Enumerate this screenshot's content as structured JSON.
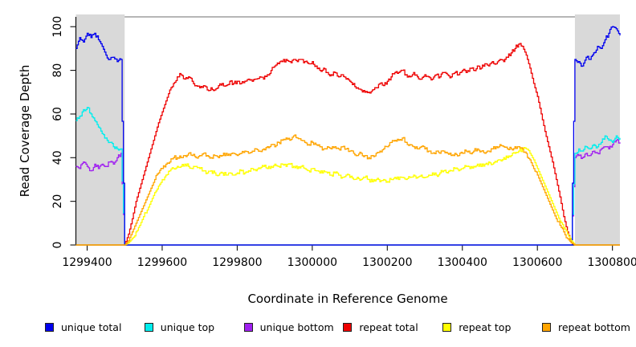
{
  "chart_data": {
    "type": "line",
    "title": "",
    "xlabel": "Coordinate in Reference Genome",
    "ylabel": "Read Coverage Depth",
    "xlim": [
      1299370,
      1300820
    ],
    "ylim": [
      0,
      104.5
    ],
    "x_ticks": [
      1299400,
      1299600,
      1299800,
      1300000,
      1300200,
      1300400,
      1300600,
      1300800
    ],
    "y_ticks": [
      0,
      20,
      40,
      60,
      80,
      100
    ],
    "grid": false,
    "legend_position": "bottom-horizontal",
    "shaded_regions": [
      {
        "x0": 1299370,
        "x1": 1299500,
        "color": "#d9d9d9"
      },
      {
        "x0": 1300700,
        "x1": 1300820,
        "color": "#d9d9d9"
      }
    ],
    "x_start": 1299370,
    "x_step": 10,
    "series": [
      {
        "name": "unique total",
        "color": "#0000ee",
        "values": [
          90,
          95,
          93,
          97,
          95,
          97,
          94,
          91,
          87,
          85,
          86,
          84,
          85,
          0,
          0,
          0,
          0,
          0,
          0,
          0,
          0,
          0,
          0,
          0,
          0,
          0,
          0,
          0,
          0,
          0,
          0,
          0,
          0,
          0,
          0,
          0,
          0,
          0,
          0,
          0,
          0,
          0,
          0,
          0,
          0,
          0,
          0,
          0,
          0,
          0,
          0,
          0,
          0,
          0,
          0,
          0,
          0,
          0,
          0,
          0,
          0,
          0,
          0,
          0,
          0,
          0,
          0,
          0,
          0,
          0,
          0,
          0,
          0,
          0,
          0,
          0,
          0,
          0,
          0,
          0,
          0,
          0,
          0,
          0,
          0,
          0,
          0,
          0,
          0,
          0,
          0,
          0,
          0,
          0,
          0,
          0,
          0,
          0,
          0,
          0,
          0,
          0,
          0,
          0,
          0,
          0,
          0,
          0,
          0,
          0,
          0,
          0,
          0,
          0,
          0,
          0,
          0,
          0,
          0,
          0,
          0,
          0,
          0,
          0,
          0,
          0,
          0,
          0,
          0,
          0,
          0,
          0,
          0,
          85,
          84,
          82,
          86,
          85,
          88,
          91,
          90,
          94,
          97,
          100,
          99,
          96
        ]
      },
      {
        "name": "unique top",
        "color": "#00eeee",
        "values": [
          57,
          59,
          62,
          63,
          60,
          57,
          54,
          51,
          49,
          47,
          45,
          44,
          44,
          0,
          0,
          0,
          0,
          0,
          0,
          0,
          0,
          0,
          0,
          0,
          0,
          0,
          0,
          0,
          0,
          0,
          0,
          0,
          0,
          0,
          0,
          0,
          0,
          0,
          0,
          0,
          0,
          0,
          0,
          0,
          0,
          0,
          0,
          0,
          0,
          0,
          0,
          0,
          0,
          0,
          0,
          0,
          0,
          0,
          0,
          0,
          0,
          0,
          0,
          0,
          0,
          0,
          0,
          0,
          0,
          0,
          0,
          0,
          0,
          0,
          0,
          0,
          0,
          0,
          0,
          0,
          0,
          0,
          0,
          0,
          0,
          0,
          0,
          0,
          0,
          0,
          0,
          0,
          0,
          0,
          0,
          0,
          0,
          0,
          0,
          0,
          0,
          0,
          0,
          0,
          0,
          0,
          0,
          0,
          0,
          0,
          0,
          0,
          0,
          0,
          0,
          0,
          0,
          0,
          0,
          0,
          0,
          0,
          0,
          0,
          0,
          0,
          0,
          0,
          0,
          0,
          0,
          0,
          0,
          42,
          44,
          43,
          45,
          44,
          46,
          45,
          47,
          50,
          48,
          47,
          50,
          49
        ]
      },
      {
        "name": "unique bottom",
        "color": "#a020f0",
        "values": [
          36,
          35,
          38,
          36,
          34,
          37,
          35,
          37,
          36,
          38,
          37,
          40,
          42,
          0,
          0,
          0,
          0,
          0,
          0,
          0,
          0,
          0,
          0,
          0,
          0,
          0,
          0,
          0,
          0,
          0,
          0,
          0,
          0,
          0,
          0,
          0,
          0,
          0,
          0,
          0,
          0,
          0,
          0,
          0,
          0,
          0,
          0,
          0,
          0,
          0,
          0,
          0,
          0,
          0,
          0,
          0,
          0,
          0,
          0,
          0,
          0,
          0,
          0,
          0,
          0,
          0,
          0,
          0,
          0,
          0,
          0,
          0,
          0,
          0,
          0,
          0,
          0,
          0,
          0,
          0,
          0,
          0,
          0,
          0,
          0,
          0,
          0,
          0,
          0,
          0,
          0,
          0,
          0,
          0,
          0,
          0,
          0,
          0,
          0,
          0,
          0,
          0,
          0,
          0,
          0,
          0,
          0,
          0,
          0,
          0,
          0,
          0,
          0,
          0,
          0,
          0,
          0,
          0,
          0,
          0,
          0,
          0,
          0,
          0,
          0,
          0,
          0,
          0,
          0,
          0,
          0,
          0,
          0,
          40,
          41,
          40,
          42,
          41,
          43,
          42,
          44,
          45,
          44,
          46,
          48,
          47
        ]
      },
      {
        "name": "repeat total",
        "color": "#ee0000",
        "values": [
          0,
          0,
          0,
          0,
          0,
          0,
          0,
          0,
          0,
          0,
          0,
          0,
          0,
          0,
          5,
          12,
          20,
          26,
          32,
          38,
          44,
          50,
          56,
          61,
          66,
          71,
          74,
          77,
          78,
          76,
          77,
          75,
          73,
          72,
          73,
          71,
          72,
          71,
          73,
          74,
          73,
          75,
          74,
          75,
          74,
          75,
          76,
          75,
          76,
          77,
          76,
          78,
          80,
          82,
          83,
          84,
          85,
          84,
          85,
          84,
          85,
          84,
          83,
          84,
          82,
          80,
          81,
          79,
          78,
          79,
          77,
          78,
          76,
          75,
          74,
          72,
          71,
          70,
          70,
          71,
          72,
          74,
          73,
          75,
          77,
          79,
          79,
          80,
          78,
          77,
          79,
          77,
          76,
          78,
          77,
          76,
          78,
          77,
          79,
          78,
          77,
          79,
          78,
          80,
          79,
          81,
          80,
          82,
          81,
          83,
          82,
          84,
          83,
          85,
          84,
          86,
          88,
          90,
          92,
          91,
          87,
          81,
          74,
          68,
          60,
          52,
          45,
          38,
          30,
          22,
          13,
          6,
          1,
          0,
          0,
          0,
          0,
          0,
          0,
          0,
          0,
          0,
          0,
          0,
          0,
          0
        ]
      },
      {
        "name": "repeat top",
        "color": "#ffff00",
        "values": [
          0,
          0,
          0,
          0,
          0,
          0,
          0,
          0,
          0,
          0,
          0,
          0,
          0,
          0,
          1,
          3,
          6,
          9,
          13,
          16,
          20,
          24,
          27,
          30,
          32,
          34,
          35,
          36,
          36,
          37,
          36,
          35,
          36,
          35,
          34,
          33,
          34,
          33,
          32,
          33,
          32,
          33,
          32,
          33,
          34,
          33,
          34,
          35,
          34,
          35,
          36,
          35,
          36,
          37,
          36,
          37,
          36,
          37,
          36,
          35,
          36,
          35,
          34,
          35,
          34,
          33,
          34,
          33,
          32,
          33,
          32,
          31,
          32,
          31,
          30,
          31,
          30,
          31,
          30,
          29,
          30,
          29,
          30,
          29,
          30,
          31,
          30,
          31,
          30,
          31,
          32,
          31,
          32,
          31,
          32,
          33,
          32,
          33,
          34,
          33,
          34,
          35,
          34,
          35,
          36,
          35,
          36,
          37,
          36,
          37,
          38,
          37,
          38,
          39,
          40,
          40,
          41,
          42,
          43,
          44,
          44,
          42,
          39,
          35,
          31,
          27,
          23,
          19,
          15,
          11,
          8,
          5,
          2,
          0,
          0,
          0,
          0,
          0,
          0,
          0,
          0,
          0,
          0,
          0,
          0,
          0
        ]
      },
      {
        "name": "repeat bottom",
        "color": "#ffa500",
        "values": [
          0,
          0,
          0,
          0,
          0,
          0,
          0,
          0,
          0,
          0,
          0,
          0,
          0,
          0,
          2,
          6,
          10,
          14,
          18,
          22,
          26,
          30,
          33,
          35,
          37,
          38,
          40,
          40,
          40,
          41,
          42,
          41,
          40,
          41,
          42,
          41,
          40,
          41,
          40,
          41,
          42,
          41,
          42,
          41,
          42,
          43,
          42,
          43,
          44,
          43,
          44,
          45,
          46,
          45,
          47,
          48,
          49,
          48,
          50,
          49,
          48,
          47,
          46,
          47,
          46,
          45,
          44,
          45,
          44,
          45,
          44,
          45,
          44,
          43,
          42,
          41,
          42,
          41,
          40,
          41,
          42,
          43,
          44,
          45,
          47,
          48,
          48,
          49,
          47,
          46,
          45,
          44,
          45,
          44,
          43,
          42,
          43,
          42,
          43,
          42,
          41,
          42,
          41,
          42,
          43,
          42,
          43,
          44,
          43,
          42,
          43,
          44,
          45,
          46,
          45,
          44,
          44,
          45,
          45,
          44,
          42,
          39,
          35,
          32,
          28,
          24,
          20,
          16,
          12,
          9,
          6,
          3,
          1,
          0,
          0,
          0,
          0,
          0,
          0,
          0,
          0,
          0,
          0,
          0,
          0,
          0
        ]
      }
    ]
  }
}
